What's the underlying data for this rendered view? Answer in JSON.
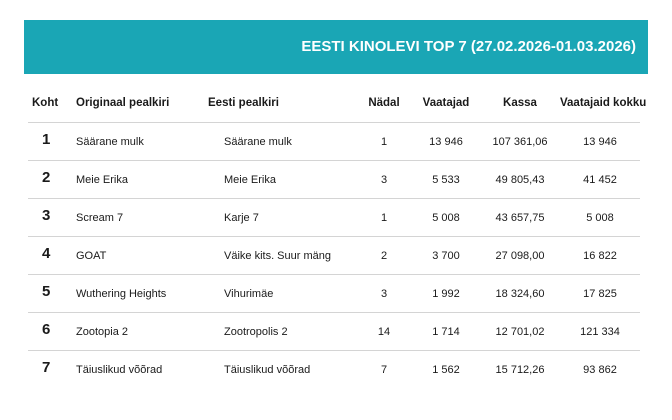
{
  "header": {
    "title": "EESTI KINOLEVI TOP 7 (27.02.2026-01.03.2026)"
  },
  "columns": {
    "rank": "Koht",
    "original": "Originaal pealkiri",
    "estonian": "Eesti pealkiri",
    "week": "Nädal",
    "viewers": "Vaatajad",
    "box": "Kassa",
    "total": "Vaatajaid kokku"
  },
  "rows": [
    {
      "rank": "1",
      "original": "Säärane mulk",
      "estonian": "Säärane mulk",
      "week": "1",
      "viewers": "13 946",
      "box": "107 361,06",
      "total": "13 946"
    },
    {
      "rank": "2",
      "original": "Meie Erika",
      "estonian": "Meie Erika",
      "week": "3",
      "viewers": "5 533",
      "box": "49 805,43",
      "total": "41 452"
    },
    {
      "rank": "3",
      "original": "Scream 7",
      "estonian": "Karje 7",
      "week": "1",
      "viewers": "5 008",
      "box": "43 657,75",
      "total": "5 008"
    },
    {
      "rank": "4",
      "original": "GOAT",
      "estonian": "Väike kits. Suur mäng",
      "week": "2",
      "viewers": "3 700",
      "box": "27 098,00",
      "total": "16 822"
    },
    {
      "rank": "5",
      "original": "Wuthering Heights",
      "estonian": "Vihurimäe",
      "week": "3",
      "viewers": "1 992",
      "box": "18 324,60",
      "total": "17 825"
    },
    {
      "rank": "6",
      "original": "Zootopia 2",
      "estonian": "Zootropolis 2",
      "week": "14",
      "viewers": "1 714",
      "box": "12 701,02",
      "total": "121 334"
    },
    {
      "rank": "7",
      "original": "Täiuslikud võõrad",
      "estonian": "Täiuslikud võõrad",
      "week": "7",
      "viewers": "1 562",
      "box": "15 712,26",
      "total": "93 862"
    }
  ],
  "colors": {
    "header_bg": "#1aa6b5",
    "header_text": "#ffffff",
    "divider": "#d4d4d4"
  }
}
